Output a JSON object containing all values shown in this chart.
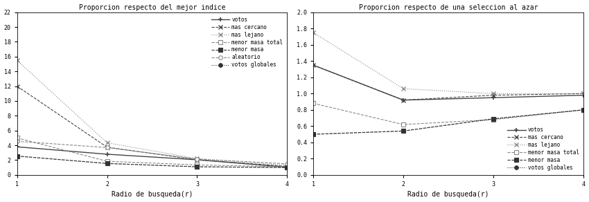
{
  "left": {
    "title": "Proporcion respecto del mejor indice",
    "xlabel": "Radio de busqueda(r)",
    "xlim": [
      1,
      4
    ],
    "ylim": [
      0,
      22
    ],
    "yticks": [
      0,
      2,
      4,
      6,
      8,
      10,
      12,
      14,
      16,
      18,
      20,
      22
    ],
    "xticks": [
      1,
      2,
      3,
      4
    ],
    "series": {
      "votos": [
        3.8,
        2.8,
        2.05,
        1.05
      ],
      "mas_cercano": [
        12.0,
        3.75,
        2.05,
        1.15
      ],
      "mas_lejano": [
        15.5,
        4.35,
        2.2,
        1.3
      ],
      "menor_masa_total": [
        5.0,
        1.85,
        1.35,
        1.1
      ],
      "menor_masa": [
        2.55,
        1.55,
        1.1,
        1.0
      ],
      "aleatorio": [
        4.55,
        3.7,
        2.15,
        1.5
      ],
      "votos_globales": [
        2.55,
        1.55,
        1.1,
        1.0
      ]
    },
    "legend_loc": "upper right"
  },
  "right": {
    "title": "Proporcion respecto de una seleccion al azar",
    "xlabel": "Radio de busqueda(r)",
    "xlim": [
      1,
      4
    ],
    "ylim": [
      0,
      2
    ],
    "yticks": [
      0,
      0.2,
      0.4,
      0.6,
      0.8,
      1.0,
      1.2,
      1.4,
      1.6,
      1.8,
      2.0
    ],
    "xticks": [
      1,
      2,
      3,
      4
    ],
    "series": {
      "votos": [
        1.35,
        0.92,
        0.95,
        0.98
      ],
      "mas_cercano": [
        1.35,
        0.92,
        0.98,
        1.0
      ],
      "mas_lejano": [
        1.75,
        1.06,
        1.0,
        1.0
      ],
      "menor_masa_total": [
        0.88,
        0.62,
        0.68,
        0.8
      ],
      "menor_masa": [
        0.5,
        0.54,
        0.69,
        0.8
      ],
      "votos_globales": [
        0.5,
        0.54,
        0.69,
        0.8
      ]
    },
    "legend_loc": "lower right"
  },
  "series_styles": {
    "votos": {
      "ls": "-",
      "marker": "+",
      "ms": 5,
      "lw": 1.0,
      "color": "#444444",
      "mfc": "#444444",
      "mew": 1.2
    },
    "mas_cercano": {
      "ls": "--",
      "marker": "x",
      "ms": 5,
      "lw": 0.8,
      "color": "#444444",
      "mfc": "#444444",
      "mew": 1.0
    },
    "mas_lejano": {
      "ls": ":",
      "marker": "x",
      "ms": 5,
      "lw": 0.8,
      "color": "#888888",
      "mfc": "#888888",
      "mew": 1.0
    },
    "menor_masa_total": {
      "ls": "--",
      "marker": "s",
      "ms": 4,
      "lw": 0.8,
      "color": "#888888",
      "mfc": "white",
      "mew": 0.8
    },
    "menor_masa": {
      "ls": "--",
      "marker": "s",
      "ms": 4,
      "lw": 0.8,
      "color": "#333333",
      "mfc": "#333333",
      "mew": 0.8
    },
    "aleatorio": {
      "ls": "--",
      "marker": "o",
      "ms": 4,
      "lw": 0.8,
      "color": "#888888",
      "mfc": "white",
      "mew": 0.8
    },
    "votos_globales": {
      "ls": ":",
      "marker": "o",
      "ms": 4,
      "lw": 0.8,
      "color": "#333333",
      "mfc": "#333333",
      "mew": 0.8
    }
  },
  "label_map": {
    "votos": "votos",
    "mas_cercano": "mas cercano",
    "mas_lejano": "mas lejano",
    "menor_masa_total": "menor masa total",
    "menor_masa": "menor masa",
    "aleatorio": "aleatorio",
    "votos_globales": "votos globales"
  },
  "background_color": "#ffffff",
  "font_family": "monospace",
  "title_fontsize": 7,
  "label_fontsize": 7,
  "tick_fontsize": 6,
  "legend_fontsize": 5.5
}
